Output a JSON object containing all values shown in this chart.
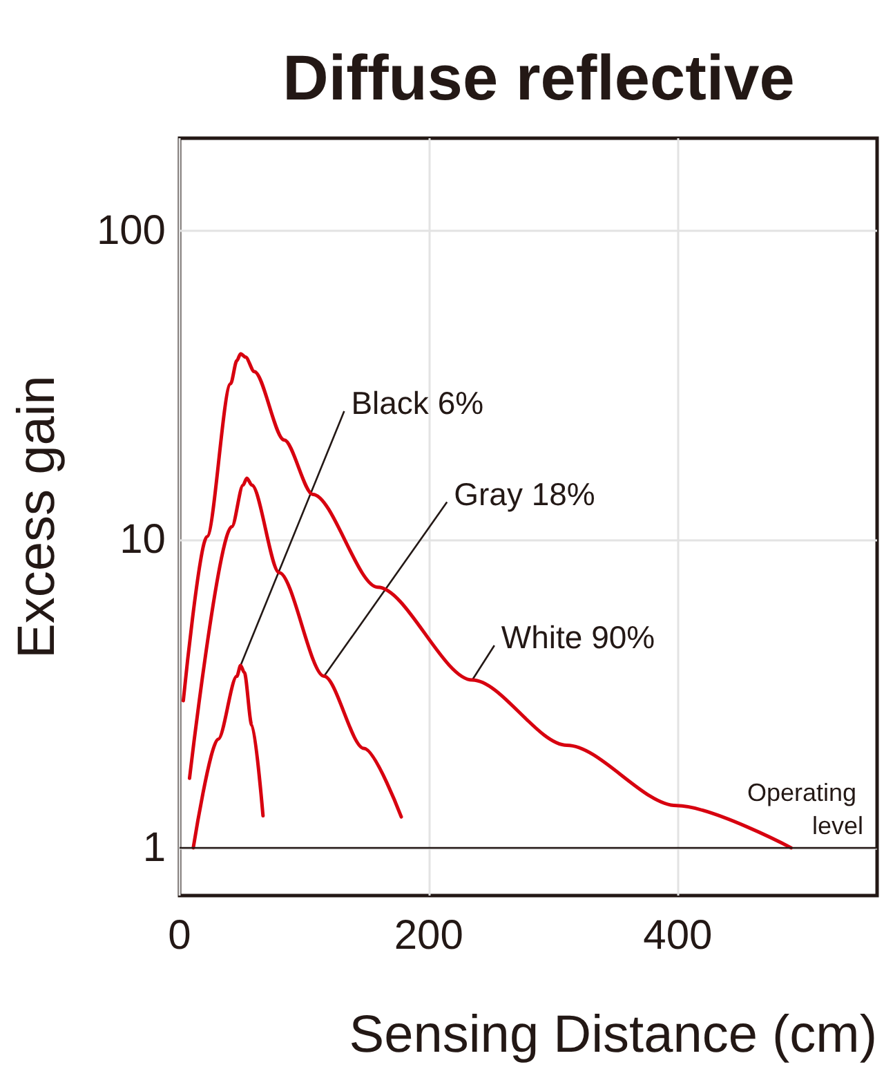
{
  "chart_data": {
    "type": "line",
    "title": "Diffuse reflective",
    "xlabel": "Sensing Distance (cm)",
    "ylabel": "Excess gain",
    "log": "y",
    "xlim": [
      0,
      560
    ],
    "ylim": [
      0.7,
      200
    ],
    "xticks": [
      0,
      200,
      400
    ],
    "yticks": [
      1,
      10,
      100
    ],
    "grid": true,
    "marker": "none",
    "line_style": "solid",
    "series": [
      {
        "color": "#d7000f",
        "x": [
          3,
          22,
          41,
          46,
          49,
          53,
          60,
          84,
          107,
          159,
          235,
          311,
          399,
          491
        ],
        "values": [
          3.0,
          10.2,
          32,
          38,
          40,
          39,
          35,
          21,
          14,
          7,
          3.5,
          2.15,
          1.37,
          1.0
        ]
      },
      {
        "color": "#d7000f",
        "x": [
          8,
          42,
          51,
          54,
          58,
          80,
          116,
          148,
          178
        ],
        "values": [
          1.68,
          11,
          15,
          15.8,
          15,
          7.8,
          3.6,
          2.1,
          1.26
        ]
      },
      {
        "color": "#d7000f",
        "x": [
          11,
          31,
          46,
          49,
          52,
          58,
          67
        ],
        "values": [
          1.0,
          2.25,
          3.6,
          3.9,
          3.7,
          2.5,
          1.27
        ]
      }
    ],
    "annotations": [
      {
        "text": "Black 6%",
        "x": 49,
        "y": 3.9
      },
      {
        "text": "Gray 18%",
        "x": 116,
        "y": 3.6
      },
      {
        "text": "White 90%",
        "x": 235,
        "y": 3.5
      }
    ],
    "ref_lines": [
      {
        "axis": "y",
        "value": 1,
        "label": "Operating level",
        "color": "#231815",
        "line_style": "solid"
      }
    ]
  }
}
